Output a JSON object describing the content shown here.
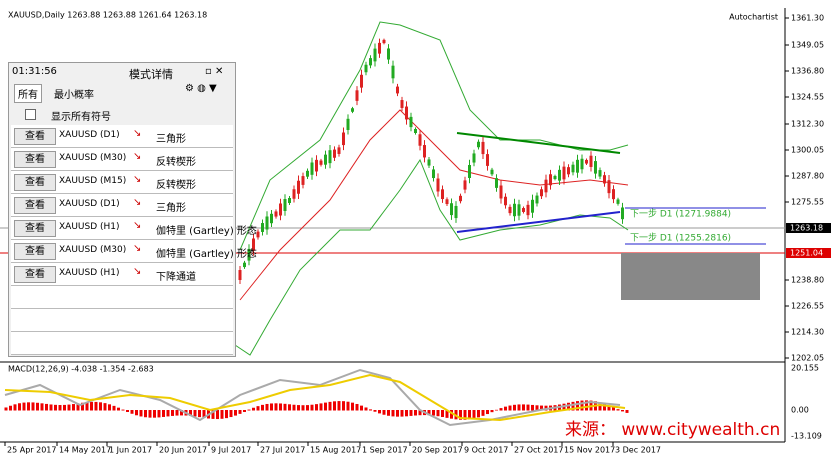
{
  "header": {
    "symbol_info": "XAUUSD,Daily 1263.88 1263.88 1261.64 1263.18",
    "plugin": "Autochartist"
  },
  "price_axis": [
    "1361.30",
    "1349.05",
    "1336.80",
    "1324.55",
    "1312.30",
    "1300.05",
    "1287.80",
    "1275.55",
    "1238.80",
    "1226.55",
    "1214.30",
    "1202.05"
  ],
  "current_price": "1263.18",
  "line_price": "1251.04",
  "annotations": [
    "下一步 D1 (1271.9884)",
    "下一步 D1 (1255.2816)"
  ],
  "macd": {
    "label": "MACD(12,26,9) -4.038 -1.354 -2.683",
    "axis": [
      "20.155",
      "0.00",
      "-13.109"
    ]
  },
  "dates": [
    "25 Apr 2017",
    "14 May 2017",
    "1 Jun 2017",
    "20 Jun 2017",
    "9 Jul 2017",
    "27 Jul 2017",
    "15 Aug 2017",
    "1 Sep 2017",
    "20 Sep 2017",
    "9 Oct 2017",
    "27 Oct 2017",
    "15 Nov 2017",
    "3 Dec 2017"
  ],
  "panel": {
    "time": "01:31:56",
    "title": "模式详情",
    "filter": "所有",
    "probability": "最小概率",
    "show_all": "显示所有符号",
    "rows": [
      {
        "button": "查看",
        "symbol": "XAUUSD (D1)",
        "pattern": "三角形"
      },
      {
        "button": "查看",
        "symbol": "XAUUSD (M30)",
        "pattern": "反转楔形"
      },
      {
        "button": "查看",
        "symbol": "XAUUSD (M15)",
        "pattern": "反转楔形"
      },
      {
        "button": "查看",
        "symbol": "XAUUSD (D1)",
        "pattern": "三角形"
      },
      {
        "button": "查看",
        "symbol": "XAUUSD (H1)",
        "pattern": "伽特里 (Gartley) 形态"
      },
      {
        "button": "查看",
        "symbol": "XAUUSD (M30)",
        "pattern": "伽特里 (Gartley) 形态"
      },
      {
        "button": "查看",
        "symbol": "XAUUSD (H1)",
        "pattern": "下降通道"
      }
    ]
  },
  "watermark": "来源：  www.citywealth.cn"
}
